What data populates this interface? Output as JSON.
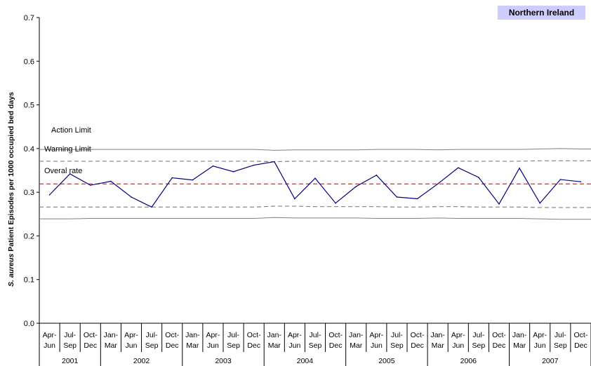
{
  "region": "Northern Ireland",
  "chart_data": {
    "type": "line",
    "ylabel_italic": "S. aureus",
    "ylabel_rest": " Patient Episodes per 1000 occupied bed days",
    "ylim": [
      0,
      0.7
    ],
    "yticks": [
      "0.0",
      "0.1",
      "0.2",
      "0.3",
      "0.4",
      "0.5",
      "0.6",
      "0.7"
    ],
    "quarters": [
      [
        "Apr-",
        "Jun"
      ],
      [
        "Jul-",
        "Sep"
      ],
      [
        "Oct-",
        "Dec"
      ],
      [
        "Jan-",
        "Mar"
      ],
      [
        "Apr-",
        "Jun"
      ],
      [
        "Jul-",
        "Sep"
      ],
      [
        "Oct-",
        "Dec"
      ],
      [
        "Jan-",
        "Mar"
      ],
      [
        "Apr-",
        "Jun"
      ],
      [
        "Jul-",
        "Sep"
      ],
      [
        "Oct-",
        "Dec"
      ],
      [
        "Jan-",
        "Mar"
      ],
      [
        "Apr-",
        "Jun"
      ],
      [
        "Jul-",
        "Sep"
      ],
      [
        "Oct-",
        "Dec"
      ],
      [
        "Jan-",
        "Mar"
      ],
      [
        "Apr-",
        "Jun"
      ],
      [
        "Jul-",
        "Sep"
      ],
      [
        "Oct-",
        "Dec"
      ],
      [
        "Jan-",
        "Mar"
      ],
      [
        "Apr-",
        "Jun"
      ],
      [
        "Jul-",
        "Sep"
      ],
      [
        "Oct-",
        "Dec"
      ],
      [
        "Jan-",
        "Mar"
      ],
      [
        "Apr-",
        "Jun"
      ],
      [
        "Jul-",
        "Sep"
      ],
      [
        "Oct-",
        "Dec"
      ]
    ],
    "years": [
      {
        "label": "2001",
        "quarters": 3
      },
      {
        "label": "2002",
        "quarters": 4
      },
      {
        "label": "2003",
        "quarters": 4
      },
      {
        "label": "2004",
        "quarters": 4
      },
      {
        "label": "2005",
        "quarters": 4
      },
      {
        "label": "2006",
        "quarters": 4
      },
      {
        "label": "2007",
        "quarters": 4
      }
    ],
    "rate": [
      0.294,
      0.342,
      0.316,
      0.325,
      0.289,
      0.266,
      0.333,
      0.328,
      0.36,
      0.347,
      0.362,
      0.37,
      0.285,
      0.332,
      0.275,
      0.313,
      0.339,
      0.289,
      0.285,
      0.319,
      0.356,
      0.334,
      0.273,
      0.355,
      0.275,
      0.329,
      0.324
    ],
    "overall_rate": 0.319,
    "warning_upper": [
      0.371,
      0.371,
      0.371,
      0.371,
      0.371,
      0.371,
      0.371,
      0.371,
      0.371,
      0.371,
      0.371,
      0.37,
      0.371,
      0.371,
      0.371,
      0.371,
      0.371,
      0.371,
      0.371,
      0.371,
      0.371,
      0.371,
      0.371,
      0.371,
      0.372,
      0.372,
      0.372
    ],
    "warning_lower": [
      0.266,
      0.266,
      0.266,
      0.266,
      0.266,
      0.266,
      0.266,
      0.266,
      0.266,
      0.266,
      0.266,
      0.268,
      0.268,
      0.267,
      0.267,
      0.267,
      0.267,
      0.266,
      0.266,
      0.267,
      0.267,
      0.266,
      0.266,
      0.266,
      0.265,
      0.265,
      0.265
    ],
    "action_upper": [
      0.398,
      0.398,
      0.398,
      0.398,
      0.398,
      0.398,
      0.398,
      0.398,
      0.398,
      0.398,
      0.398,
      0.396,
      0.397,
      0.397,
      0.397,
      0.397,
      0.398,
      0.398,
      0.398,
      0.397,
      0.398,
      0.398,
      0.398,
      0.398,
      0.399,
      0.4,
      0.399
    ],
    "action_lower": [
      0.239,
      0.239,
      0.24,
      0.24,
      0.24,
      0.24,
      0.24,
      0.24,
      0.24,
      0.24,
      0.24,
      0.242,
      0.241,
      0.241,
      0.241,
      0.241,
      0.24,
      0.24,
      0.24,
      0.241,
      0.24,
      0.24,
      0.24,
      0.24,
      0.239,
      0.238,
      0.238
    ],
    "annotations": {
      "action": "Action Limit",
      "warning": "Warning Limit",
      "overall": "Overal rate"
    },
    "colors": {
      "rate": "#000080",
      "overall": "#993333",
      "warning": "#808080",
      "action": "#808080",
      "badge": "#ccccff"
    }
  }
}
